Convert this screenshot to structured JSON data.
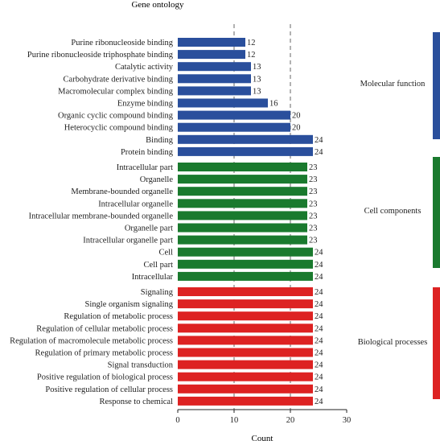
{
  "chart_data": {
    "type": "bar",
    "orientation": "horizontal",
    "title": "Gene ontology",
    "xlabel": "Count",
    "xlim": [
      0,
      30
    ],
    "xticks": [
      0,
      10,
      20,
      30
    ],
    "reference_lines": [
      10,
      20
    ],
    "groups": [
      {
        "name": "Molecular function",
        "color": "#2a4f9c",
        "categories": [
          "Purine ribonucleoside binding",
          "Purine ribonucleoside triphosphate binding",
          "Catalytic activity",
          "Carbohydrate derivative binding",
          "Macromolecular complex binding",
          "Enzyme binding",
          "Organic cyclic compound binding",
          "Heterocyclic compound binding",
          "Binding",
          "Protein binding"
        ],
        "values": [
          12,
          12,
          13,
          13,
          13,
          16,
          20,
          20,
          24,
          24
        ]
      },
      {
        "name": "Cell components",
        "color": "#1a7a2e",
        "categories": [
          "Intracellular part",
          "Organelle",
          "Membrane-bounded organelle",
          "Intracellular organelle",
          "Intracellular membrane-bounded organelle",
          "Organelle part",
          "Intracellular organelle part",
          "Cell",
          "Cell part",
          "Intracellular"
        ],
        "values": [
          23,
          23,
          23,
          23,
          23,
          23,
          23,
          24,
          24,
          24
        ]
      },
      {
        "name": "Biological processes",
        "color": "#dd2222",
        "categories": [
          "Signaling",
          "Single organism signaling",
          "Regulation of metabolic process",
          "Regulation of cellular metabolic process",
          "Regulation of macromolecule metabolic process",
          "Regulation of primary metabolic process",
          "Signal transduction",
          "Positive regulation of biological process",
          "Positive regulation of cellular process",
          "Response to chemical"
        ],
        "values": [
          24,
          24,
          24,
          24,
          24,
          24,
          24,
          24,
          24,
          24
        ]
      }
    ]
  }
}
